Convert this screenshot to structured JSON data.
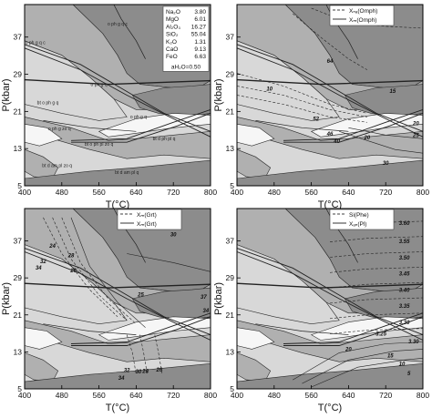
{
  "chart_data": [
    {
      "type": "area",
      "panel": "a",
      "x_ticks": [
        400,
        480,
        560,
        640,
        720,
        800
      ],
      "y_ticks": [
        5,
        13,
        21,
        29,
        37
      ],
      "xlabel": "T(°C)",
      "ylabel": "P(kbar)",
      "xlim": [
        400,
        800
      ],
      "ylim": [
        5,
        44
      ],
      "composition": {
        "rows": [
          {
            "oxide": "Na₂O",
            "value": "3.80"
          },
          {
            "oxide": "MgO",
            "value": "6.01"
          },
          {
            "oxide": "Al₂O₃",
            "value": "16.27"
          },
          {
            "oxide": "SiO₂",
            "value": "55.04"
          },
          {
            "oxide": "K₂O",
            "value": "1.31"
          },
          {
            "oxide": "CaO",
            "value": "9.13"
          },
          {
            "oxide": "FeO",
            "value": "6.63"
          }
        ],
        "water": "aH₂O=0.50"
      },
      "field_labels": [
        {
          "text": "o ph g q c",
          "T": 600,
          "P": 39.5
        },
        {
          "text": "o ph g q c",
          "T": 423,
          "P": 35.5
        },
        {
          "text": "o ph g q",
          "T": 560,
          "P": 26.5
        },
        {
          "text": "o ph g q",
          "T": 645,
          "P": 19.5
        },
        {
          "text": "bt o ph g q",
          "T": 450,
          "P": 22.5
        },
        {
          "text": "o ph g zo q",
          "T": 475,
          "P": 17
        },
        {
          "text": "bt o ph pl zo q",
          "T": 560,
          "P": 13.6
        },
        {
          "text": "bt d ph pl q",
          "T": 700,
          "P": 14.8
        },
        {
          "text": "bt d am pl q",
          "T": 620,
          "P": 7.5
        },
        {
          "text": "bt d am pl zo q",
          "T": 470,
          "P": 9
        }
      ]
    },
    {
      "type": "line",
      "panel": "b",
      "x_ticks": [
        400,
        480,
        560,
        640,
        720,
        800
      ],
      "y_ticks": [
        5,
        13,
        21,
        29,
        37
      ],
      "xlabel": "T(°C)",
      "ylabel": "P(kbar)",
      "xlim": [
        400,
        800
      ],
      "ylim": [
        5,
        44
      ],
      "legend": [
        "Xₙₐ(Omph)",
        "Xₘ(Omph)"
      ],
      "contour_labels": [
        {
          "text": "56",
          "T": 690,
          "P": 40
        },
        {
          "text": "64",
          "T": 600,
          "P": 31.5
        },
        {
          "text": "10",
          "T": 470,
          "P": 25.5
        },
        {
          "text": "15",
          "T": 735,
          "P": 25
        },
        {
          "text": "52",
          "T": 570,
          "P": 19
        },
        {
          "text": "46",
          "T": 600,
          "P": 15.8
        },
        {
          "text": "40",
          "T": 615,
          "P": 14.2
        },
        {
          "text": "20",
          "T": 680,
          "P": 15
        },
        {
          "text": "20",
          "T": 785,
          "P": 18
        },
        {
          "text": "25",
          "T": 785,
          "P": 15.5
        },
        {
          "text": "30",
          "T": 720,
          "P": 9.5
        }
      ]
    },
    {
      "type": "line",
      "panel": "c",
      "x_ticks": [
        400,
        480,
        560,
        640,
        720,
        800
      ],
      "y_ticks": [
        5,
        13,
        21,
        29,
        37
      ],
      "xlabel": "T(°C)",
      "ylabel": "P(kbar)",
      "xlim": [
        400,
        800
      ],
      "ylim": [
        5,
        44
      ],
      "legend": [
        "Xₘ(Grt)",
        "Xₘ(Grt)"
      ],
      "contour_labels": [
        {
          "text": "30",
          "T": 720,
          "P": 38
        },
        {
          "text": "24",
          "T": 460,
          "P": 35.5
        },
        {
          "text": "28",
          "T": 500,
          "P": 33.5
        },
        {
          "text": "32",
          "T": 440,
          "P": 32.2
        },
        {
          "text": "34",
          "T": 430,
          "P": 30.8
        },
        {
          "text": "26",
          "T": 505,
          "P": 30.2
        },
        {
          "text": "25",
          "T": 650,
          "P": 25
        },
        {
          "text": "37",
          "T": 785,
          "P": 24.5
        },
        {
          "text": "34",
          "T": 790,
          "P": 21.5
        },
        {
          "text": "34",
          "T": 608,
          "P": 7
        },
        {
          "text": "32",
          "T": 620,
          "P": 8.6
        },
        {
          "text": "30",
          "T": 645,
          "P": 8.3
        },
        {
          "text": "28",
          "T": 660,
          "P": 8.4
        },
        {
          "text": "26",
          "T": 690,
          "P": 8.7
        }
      ]
    },
    {
      "type": "line",
      "panel": "d",
      "x_ticks": [
        400,
        480,
        560,
        640,
        720,
        800
      ],
      "y_ticks": [
        5,
        13,
        21,
        29,
        37
      ],
      "xlabel": "T(°C)",
      "ylabel": "P(kbar)",
      "xlim": [
        400,
        800
      ],
      "ylim": [
        5,
        44
      ],
      "legend": [
        "Si(Phe)",
        "Xₐₙ(Pl)"
      ],
      "contour_labels": [
        {
          "text": "3.60",
          "T": 760,
          "P": 40.5
        },
        {
          "text": "3.55",
          "T": 760,
          "P": 36.5
        },
        {
          "text": "3.50",
          "T": 760,
          "P": 33
        },
        {
          "text": "3.45",
          "T": 760,
          "P": 29.5
        },
        {
          "text": "3.40",
          "T": 760,
          "P": 26
        },
        {
          "text": "3.35",
          "T": 760,
          "P": 22.5
        },
        {
          "text": "3.30",
          "T": 760,
          "P": 19
        },
        {
          "text": "3.25",
          "T": 710,
          "P": 16.5
        },
        {
          "text": "3.30",
          "T": 780,
          "P": 14.8
        },
        {
          "text": "20",
          "T": 640,
          "P": 13.2
        },
        {
          "text": "15",
          "T": 730,
          "P": 11.8
        },
        {
          "text": "10",
          "T": 755,
          "P": 10
        },
        {
          "text": "5",
          "T": 770,
          "P": 8
        }
      ]
    }
  ]
}
